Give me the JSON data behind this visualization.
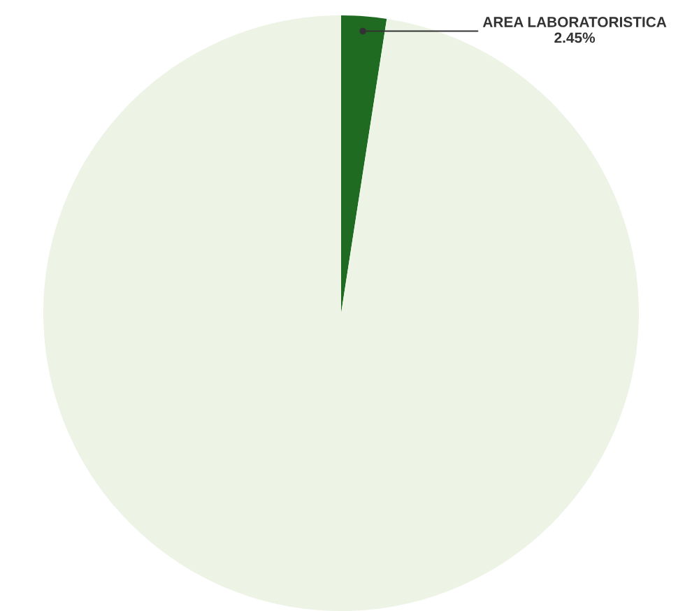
{
  "chart_data": {
    "type": "pie",
    "categories": [
      "AREA LABORATORISTICA",
      null
    ],
    "values": [
      2.45,
      97.55
    ],
    "colors": [
      "#1f6b22",
      "#edf3e5"
    ],
    "value_labels": [
      "2.45%",
      null
    ],
    "legend": false
  }
}
